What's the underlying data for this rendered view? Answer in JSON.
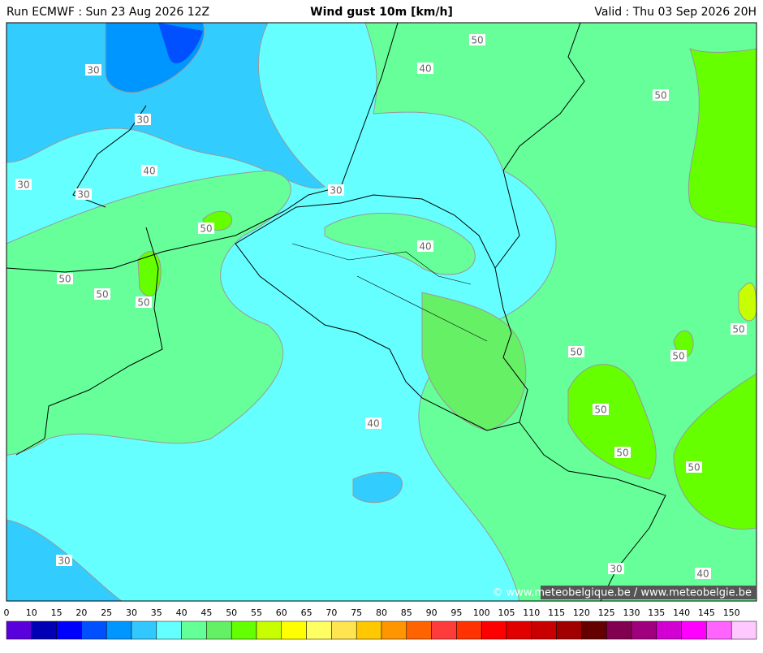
{
  "header": {
    "run": "Run ECMWF : Sun 23 Aug 2026 12Z",
    "title": "Wind gust 10m [km/h]",
    "valid": "Valid : Thu 03 Sep 2026 20H"
  },
  "contour_labels": [
    "30",
    "30",
    "30",
    "30",
    "40",
    "50",
    "50",
    "50",
    "50",
    "30",
    "40",
    "50",
    "50",
    "40",
    "50",
    "50",
    "50",
    "50",
    "50",
    "50",
    "40",
    "30",
    "30",
    "40"
  ],
  "copyright": "© www.meteobelgique.be / www.meteobelgie.be",
  "legend": {
    "labels": [
      "0",
      "10",
      "15",
      "20",
      "25",
      "30",
      "35",
      "40",
      "45",
      "50",
      "55",
      "60",
      "65",
      "70",
      "75",
      "80",
      "85",
      "90",
      "95",
      "100",
      "105",
      "110",
      "115",
      "120",
      "125",
      "130",
      "135",
      "140",
      "145",
      "150"
    ],
    "colors": [
      "#5a00dc",
      "#0000b4",
      "#0000ff",
      "#0050ff",
      "#0096ff",
      "#32c8ff",
      "#64ffff",
      "#64ff96",
      "#64f064",
      "#64ff00",
      "#c8ff00",
      "#ffff00",
      "#ffff64",
      "#ffe650",
      "#ffc800",
      "#ff9600",
      "#ff6400",
      "#ff3c3c",
      "#ff3200",
      "#ff0000",
      "#e10000",
      "#c80000",
      "#a00000",
      "#640000",
      "#820050",
      "#a0007d",
      "#d200d2",
      "#ff00ff",
      "#ff64ff",
      "#ffc8ff"
    ]
  }
}
